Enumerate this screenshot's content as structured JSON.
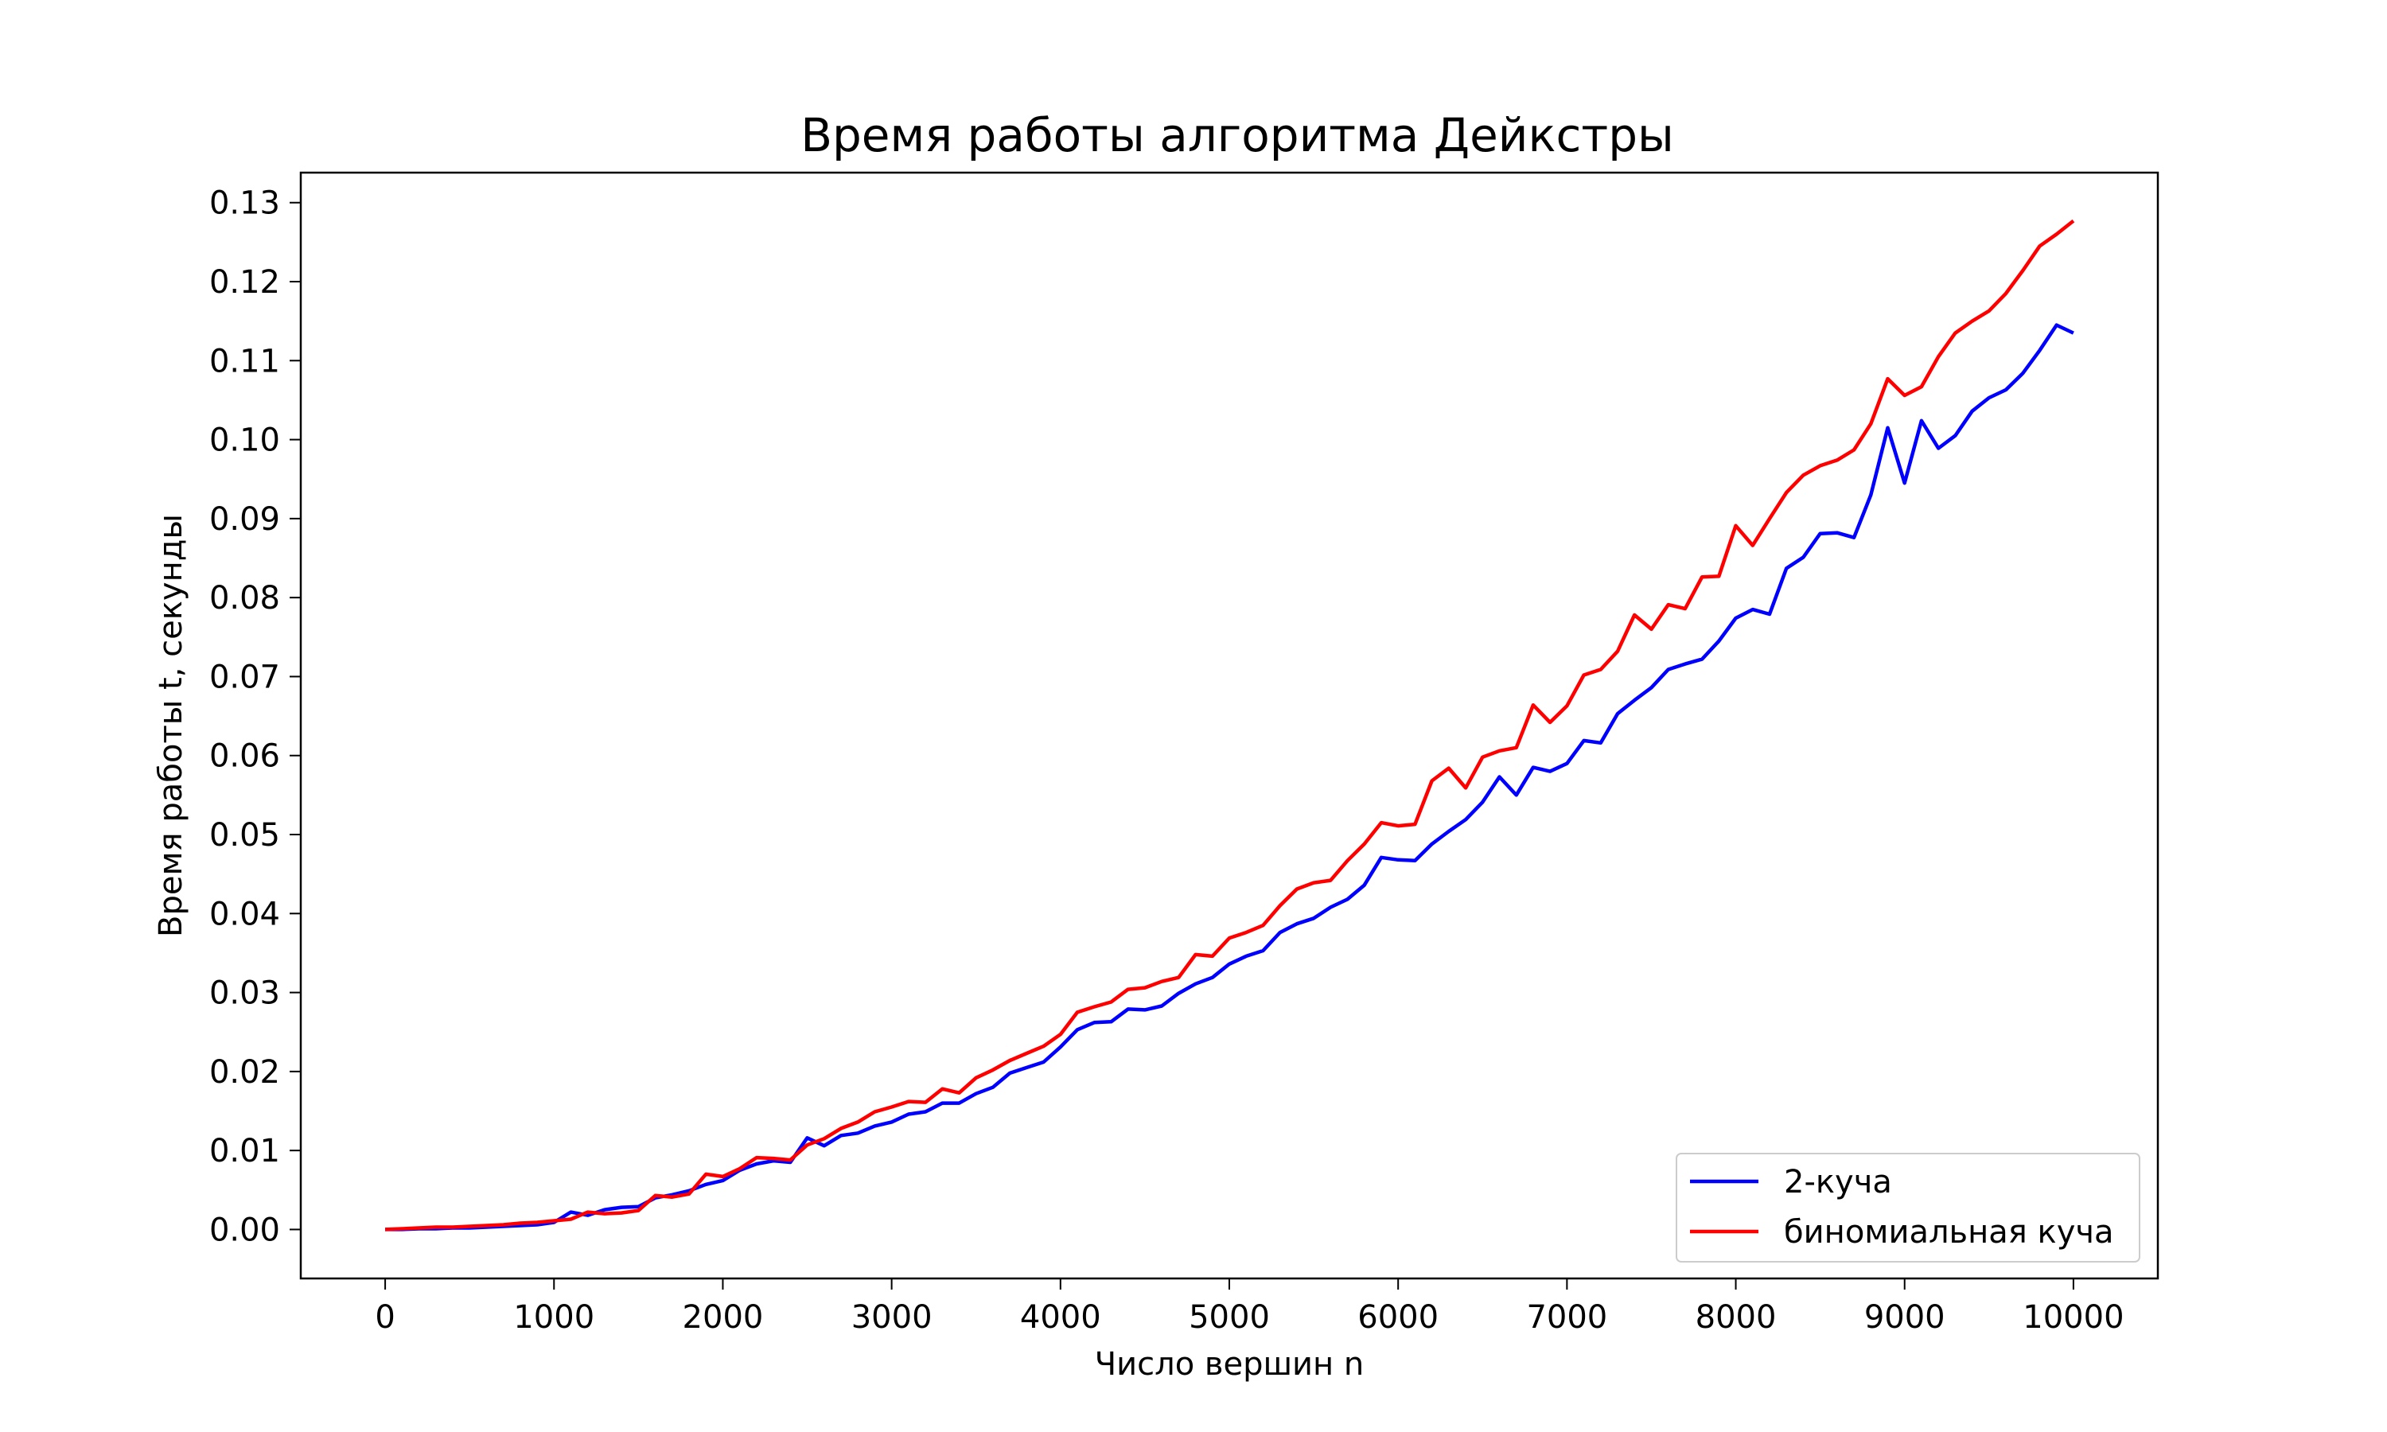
{
  "chart_data": {
    "type": "line",
    "title": "Время работы алгоритма Дейкстры",
    "xlabel": "Число вершин n",
    "ylabel": "Время работы t, секунды",
    "xlim": [
      -500,
      10500
    ],
    "ylim": [
      -0.0062,
      0.1338
    ],
    "x_ticks": [
      0,
      1000,
      2000,
      3000,
      4000,
      5000,
      6000,
      7000,
      8000,
      9000,
      10000
    ],
    "y_ticks": [
      0.0,
      0.01,
      0.02,
      0.03,
      0.04,
      0.05,
      0.06,
      0.07,
      0.08,
      0.09,
      0.1,
      0.11,
      0.12,
      0.13
    ],
    "x_tick_labels": [
      "0",
      "1000",
      "2000",
      "3000",
      "4000",
      "5000",
      "6000",
      "7000",
      "8000",
      "9000",
      "10000"
    ],
    "y_tick_labels": [
      "0.00",
      "0.01",
      "0.02",
      "0.03",
      "0.04",
      "0.05",
      "0.06",
      "0.07",
      "0.08",
      "0.09",
      "0.10",
      "0.11",
      "0.12",
      "0.13"
    ],
    "grid": false,
    "legend_position": "lower-right",
    "x": [
      0,
      100,
      200,
      300,
      400,
      500,
      600,
      700,
      800,
      900,
      1000,
      1100,
      1200,
      1300,
      1400,
      1500,
      1600,
      1700,
      1800,
      1900,
      2000,
      2100,
      2200,
      2300,
      2400,
      2500,
      2600,
      2700,
      2800,
      2900,
      3000,
      3100,
      3200,
      3300,
      3400,
      3500,
      3600,
      3700,
      3800,
      3900,
      4000,
      4100,
      4200,
      4300,
      4400,
      4500,
      4600,
      4700,
      4800,
      4900,
      5000,
      5100,
      5200,
      5300,
      5400,
      5500,
      5600,
      5700,
      5800,
      5900,
      6000,
      6100,
      6200,
      6300,
      6400,
      6500,
      6600,
      6700,
      6800,
      6900,
      7000,
      7100,
      7200,
      7300,
      7400,
      7500,
      7600,
      7700,
      7800,
      7900,
      8000,
      8100,
      8200,
      8300,
      8400,
      8500,
      8600,
      8700,
      8800,
      8900,
      9000,
      9100,
      9200,
      9300,
      9400,
      9500,
      9600,
      9700,
      9800,
      9900,
      10000
    ],
    "series": [
      {
        "name": "2-куча",
        "color": "#0000ff",
        "values": [
          0.0,
          0.0,
          0.0001,
          0.0001,
          0.0002,
          0.0002,
          0.0003,
          0.0004,
          0.0005,
          0.0006,
          0.0009,
          0.0022,
          0.0018,
          0.0025,
          0.0028,
          0.0029,
          0.004,
          0.0044,
          0.0049,
          0.0057,
          0.0062,
          0.0075,
          0.0083,
          0.0087,
          0.0085,
          0.0116,
          0.0106,
          0.0119,
          0.0122,
          0.0131,
          0.0136,
          0.0146,
          0.0149,
          0.016,
          0.016,
          0.0172,
          0.018,
          0.0198,
          0.0205,
          0.0212,
          0.0231,
          0.0253,
          0.0262,
          0.0263,
          0.0279,
          0.0278,
          0.0283,
          0.0299,
          0.0311,
          0.0319,
          0.0336,
          0.0346,
          0.0353,
          0.0376,
          0.0387,
          0.0394,
          0.0408,
          0.0418,
          0.0436,
          0.0471,
          0.0468,
          0.0467,
          0.0488,
          0.0504,
          0.0519,
          0.0541,
          0.0573,
          0.055,
          0.0585,
          0.058,
          0.059,
          0.0619,
          0.0616,
          0.0653,
          0.067,
          0.0686,
          0.0709,
          0.0716,
          0.0722,
          0.0745,
          0.0774,
          0.0785,
          0.0779,
          0.0837,
          0.0851,
          0.0881,
          0.0882,
          0.0876,
          0.093,
          0.1015,
          0.0945,
          0.1024,
          0.0989,
          0.1005,
          0.1036,
          0.1053,
          0.1063,
          0.1084,
          0.1113,
          0.1145,
          0.1135
        ]
      },
      {
        "name": "биномиальная куча",
        "color": "#ff0000",
        "values": [
          0.0,
          0.0001,
          0.0002,
          0.0003,
          0.0003,
          0.0004,
          0.0005,
          0.0006,
          0.0008,
          0.0009,
          0.0011,
          0.0013,
          0.0022,
          0.002,
          0.0021,
          0.0024,
          0.0043,
          0.0041,
          0.0045,
          0.007,
          0.0067,
          0.0077,
          0.0091,
          0.009,
          0.0088,
          0.0107,
          0.0115,
          0.0128,
          0.0136,
          0.0149,
          0.0155,
          0.0162,
          0.0161,
          0.0178,
          0.0173,
          0.0192,
          0.0202,
          0.0214,
          0.0223,
          0.0232,
          0.0247,
          0.0275,
          0.0282,
          0.0288,
          0.0304,
          0.0306,
          0.0314,
          0.0319,
          0.0348,
          0.0346,
          0.0369,
          0.0376,
          0.0385,
          0.041,
          0.0431,
          0.0439,
          0.0442,
          0.0467,
          0.0488,
          0.0515,
          0.0511,
          0.0513,
          0.0568,
          0.0584,
          0.0559,
          0.0598,
          0.0606,
          0.061,
          0.0664,
          0.0642,
          0.0663,
          0.0702,
          0.0709,
          0.0732,
          0.0778,
          0.076,
          0.0791,
          0.0786,
          0.0826,
          0.0827,
          0.0891,
          0.0866,
          0.09,
          0.0933,
          0.0955,
          0.0967,
          0.0974,
          0.0987,
          0.102,
          0.1077,
          0.1056,
          0.1067,
          0.1105,
          0.1135,
          0.115,
          0.1163,
          0.1185,
          0.1214,
          0.1245,
          0.126,
          0.1277
        ]
      }
    ]
  }
}
